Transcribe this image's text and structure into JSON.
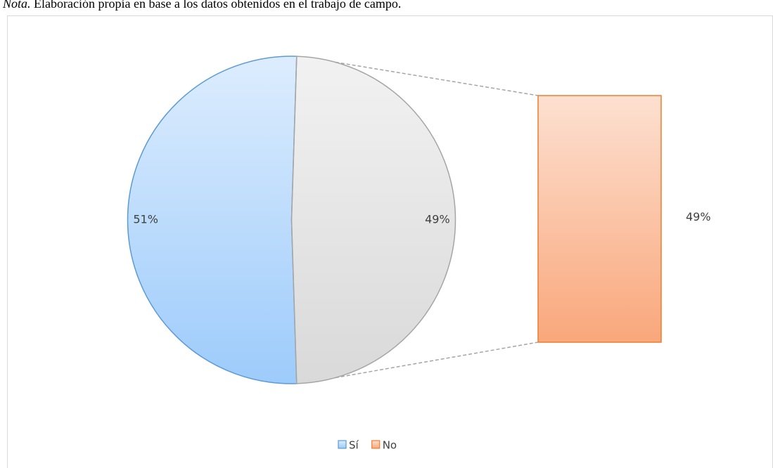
{
  "chart_data": {
    "type": "bar_of_pie",
    "note_label": "Nota.",
    "note": "Elaboración propia en base a los datos obtenidos en el trabajo de campo.",
    "pie_values": [
      51,
      49
    ],
    "pie_value_labels": [
      "51%",
      "49%"
    ],
    "pie_colors": [
      "#9dcbfb",
      "#d9d9d9"
    ],
    "pie_strokes": [
      "#5b9bd5",
      "#a5a5a5"
    ],
    "bar_values": [
      49
    ],
    "bar_value_labels": [
      "49%"
    ],
    "bar_color": "#f9a77b",
    "bar_stroke": "#ed7d31",
    "legend": [
      "Sí",
      "No"
    ],
    "legend_colors": [
      "#9dcbfb",
      "#f9a77b"
    ],
    "legend_strokes": [
      "#5b9bd5",
      "#ed7d31"
    ]
  }
}
